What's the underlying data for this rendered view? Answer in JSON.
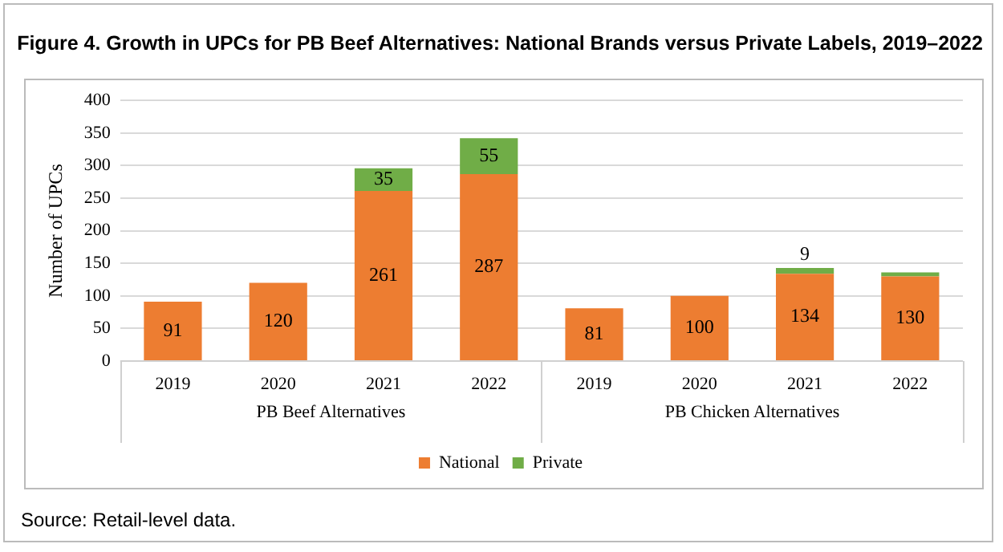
{
  "chart_data": {
    "type": "bar",
    "stacked": true,
    "title": "Figure 4. Growth in UPCs for PB Beef Alternatives: National Brands versus Private Labels, 2019–2022",
    "ylabel": "Number of UPCs",
    "categories": [
      "2019",
      "2020",
      "2021",
      "2022",
      "2019",
      "2020",
      "2021",
      "2022"
    ],
    "series": [
      {
        "name": "National",
        "color": "#ed7d31",
        "values": [
          91,
          120,
          261,
          287,
          81,
          100,
          134,
          130
        ],
        "value_labels": [
          "91",
          "120",
          "261",
          "287",
          "81",
          "100",
          "134",
          "130"
        ]
      },
      {
        "name": "Private",
        "color": "#70ad47",
        "values": [
          null,
          null,
          35,
          55,
          null,
          null,
          9,
          6
        ],
        "value_labels": [
          null,
          null,
          "35",
          "55",
          null,
          null,
          "9",
          null
        ]
      }
    ],
    "ylim": [
      0,
      400
    ],
    "yticks": [
      0,
      50,
      100,
      150,
      200,
      250,
      300,
      350,
      400
    ],
    "grid": "y",
    "legend": "bottom",
    "annotations": [
      "PB Beef Alternatives",
      "PB Chicken Alternatives",
      "Source: Retail-level data."
    ]
  }
}
